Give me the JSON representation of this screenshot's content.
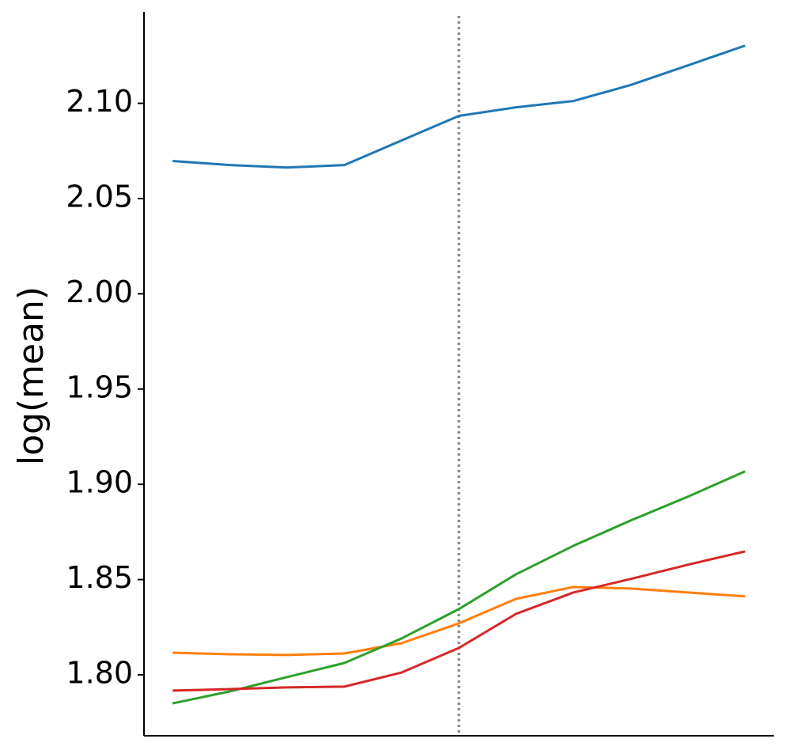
{
  "chart_data": {
    "type": "line",
    "ylabel": "log(mean)",
    "x": [
      0,
      1,
      2,
      3,
      4,
      5,
      6,
      7,
      8,
      9,
      10
    ],
    "xlim": [
      -0.5,
      10.5
    ],
    "ylim": [
      1.768,
      2.148
    ],
    "yticks": [
      {
        "value": 1.8,
        "label": "1.80"
      },
      1.85,
      {
        "value": 1.9,
        "label": "1.90"
      },
      1.95,
      {
        "value": 2.0,
        "label": "2.00"
      },
      2.05,
      {
        "value": 2.1,
        "label": "2.10"
      }
    ],
    "vline": 5,
    "series": [
      {
        "color": "#1f77b4",
        "values": [
          2.0697,
          2.0676,
          2.0663,
          2.0676,
          2.0805,
          2.0934,
          2.0979,
          2.1012,
          2.1096,
          2.1199,
          2.1303
        ]
      },
      {
        "color": "#ff7f0e",
        "values": [
          1.8116,
          1.8108,
          1.8104,
          1.8112,
          1.8166,
          1.827,
          1.8399,
          1.8461,
          1.8453,
          1.8432,
          1.8412
        ]
      },
      {
        "color": "#2ca02c",
        "values": [
          1.785,
          1.7913,
          1.7988,
          1.8062,
          1.8191,
          1.8345,
          1.8528,
          1.8677,
          1.881,
          1.8935,
          1.9068
        ]
      },
      {
        "color": "#d62728",
        "values": [
          1.7917,
          1.7925,
          1.7934,
          1.7938,
          1.8012,
          1.8141,
          1.832,
          1.8432,
          1.8503,
          1.8578,
          1.8648
        ]
      }
    ]
  }
}
